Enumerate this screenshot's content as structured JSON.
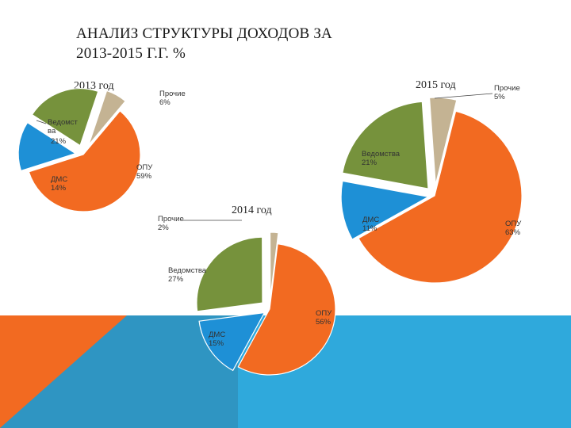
{
  "slide": {
    "title_lines": [
      "АНАЛИЗ СТРУКТУРЫ ДОХОДОВ ЗА",
      "2013-2015 Г.Г. %"
    ],
    "colors": {
      "background": "#ffffff",
      "band_light": "#2fa9dc",
      "band_mid": "#2f95c2",
      "band_orange": "#f26a21"
    }
  },
  "chart_data": [
    {
      "type": "pie",
      "title": "2013 год",
      "slices": [
        {
          "id": "opu",
          "label": "ОПУ",
          "value": 59,
          "pct": "59%",
          "color": "#f26a21"
        },
        {
          "id": "dms",
          "label": "ДМС",
          "value": 14,
          "pct": "14%",
          "color": "#1e90d6"
        },
        {
          "id": "vedomstva",
          "label": "Ведомст ва",
          "value": 21,
          "pct": "21%",
          "color": "#76923c"
        },
        {
          "id": "prochie",
          "label": "Прочие",
          "value": 6,
          "pct": "6%",
          "color": "#c4b393"
        }
      ]
    },
    {
      "type": "pie",
      "title": "2014 год",
      "slices": [
        {
          "id": "opu",
          "label": "ОПУ",
          "value": 56,
          "pct": "56%",
          "color": "#f26a21"
        },
        {
          "id": "dms",
          "label": "ДМС",
          "value": 15,
          "pct": "15%",
          "color": "#1e90d6"
        },
        {
          "id": "vedomstva",
          "label": "Ведомства",
          "value": 27,
          "pct": "27%",
          "color": "#76923c"
        },
        {
          "id": "prochie",
          "label": "Прочие",
          "value": 2,
          "pct": "2%",
          "color": "#c4b393"
        }
      ]
    },
    {
      "type": "pie",
      "title": "2015 год",
      "slices": [
        {
          "id": "opu",
          "label": "ОПУ",
          "value": 63,
          "pct": "63%",
          "color": "#f26a21"
        },
        {
          "id": "dms",
          "label": "ДМС",
          "value": 11,
          "pct": "11%",
          "color": "#1e90d6"
        },
        {
          "id": "vedomstva",
          "label": "Ведомства",
          "value": 21,
          "pct": "21%",
          "color": "#76923c"
        },
        {
          "id": "prochie",
          "label": "Прочие",
          "value": 5,
          "pct": "5%",
          "color": "#c4b393"
        }
      ]
    }
  ]
}
